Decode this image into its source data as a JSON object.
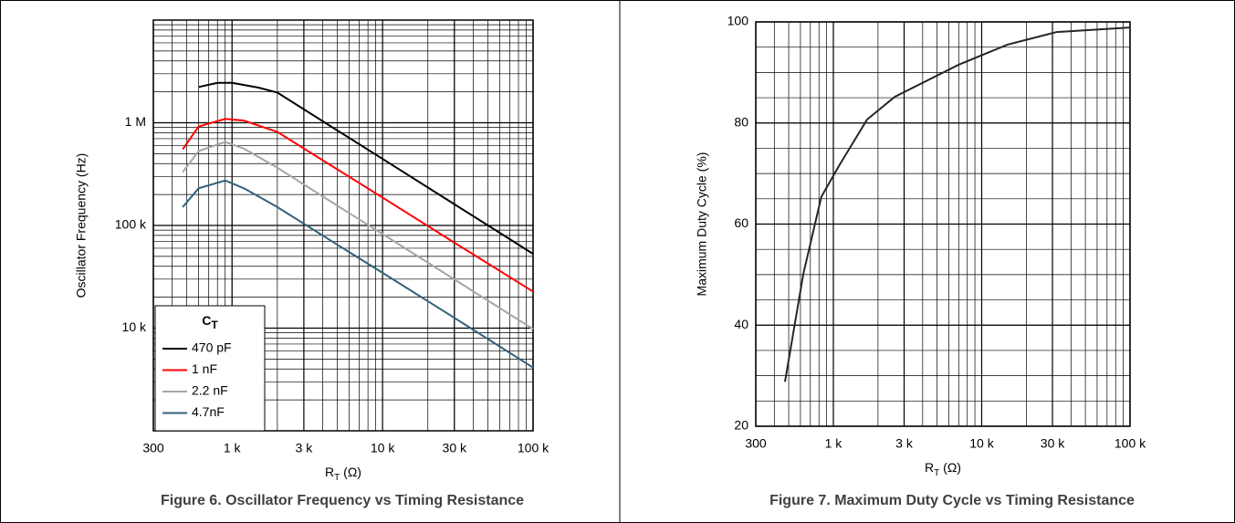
{
  "chart_data": [
    {
      "type": "line",
      "caption": "Figure 6. Oscillator Frequency vs Timing Resistance",
      "y_label": "Oscillator Frequency (Hz)",
      "x_label": {
        "main": "R",
        "sub": "T",
        "unit": " (Ω)"
      },
      "xscale": "log",
      "yscale": "log",
      "grid": true,
      "legend": "lower left",
      "legend_title": {
        "main": "C",
        "sub": "T"
      },
      "xlim": [
        300,
        100000
      ],
      "ylim": [
        1000,
        10000000
      ],
      "xticks": [
        300,
        {
          "value": 1000,
          "label": "1 k"
        },
        {
          "value": 3000,
          "label": "3 k"
        },
        {
          "value": 10000,
          "label": "10 k"
        },
        {
          "value": 30000,
          "label": "30 k"
        },
        {
          "value": 100000,
          "label": "100 k"
        }
      ],
      "yticks": [
        {
          "value": 10000,
          "label": "10 k"
        },
        {
          "value": 100000,
          "label": "100 k"
        },
        {
          "value": 1000000,
          "label": "1 M"
        }
      ],
      "series": [
        {
          "name": "470 pF",
          "color": "#000000",
          "x": [
            600,
            800,
            1000,
            1500,
            2000,
            5000,
            10000,
            30000,
            100000
          ],
          "values": [
            2230000,
            2450000,
            2450000,
            2200000,
            1970000,
            843000,
            445000,
            161000,
            52900
          ]
        },
        {
          "name": "1 nF",
          "color": "#ff0000",
          "x": [
            470,
            600,
            900,
            1200,
            2000,
            5000,
            10000,
            30000,
            100000
          ],
          "values": [
            551000,
            920000,
            1090000,
            1050000,
            814000,
            352000,
            187000,
            68000,
            22700
          ]
        },
        {
          "name": "2.2 nF",
          "color": "#a6a6a6",
          "x": [
            470,
            600,
            900,
            1200,
            2000,
            5000,
            10000,
            30000,
            100000
          ],
          "values": [
            330000,
            530000,
            650000,
            560000,
            365000,
            156000,
            82500,
            29800,
            9800
          ]
        },
        {
          "name": "4.7nF",
          "color": "#31617a",
          "x": [
            470,
            600,
            900,
            1200,
            2000,
            5000,
            10000,
            30000,
            100000
          ],
          "values": [
            151000,
            230000,
            274000,
            230000,
            151000,
            65000,
            34600,
            12600,
            4130
          ]
        }
      ]
    },
    {
      "type": "line",
      "caption": "Figure 7. Maximum Duty Cycle vs Timing Resistance",
      "y_label": "Maximum Duty Cycle (%)",
      "x_label": {
        "main": "R",
        "sub": "T",
        "unit": " (Ω)"
      },
      "xscale": "log",
      "yscale": "linear",
      "grid": true,
      "color": "#262626",
      "xlim": [
        300,
        100000
      ],
      "ylim": [
        20,
        100
      ],
      "xticks": [
        300,
        {
          "value": 1000,
          "label": "1 k"
        },
        {
          "value": 3000,
          "label": "3 k"
        },
        {
          "value": 10000,
          "label": "10 k"
        },
        {
          "value": 30000,
          "label": "30 k"
        },
        {
          "value": 100000,
          "label": "100 k"
        }
      ],
      "yticks": [
        20,
        40,
        60,
        80,
        100
      ],
      "x": [
        472,
        627,
        830,
        1100,
        1690,
        2600,
        6960,
        14900,
        32000,
        100000
      ],
      "values": [
        28.8,
        50.1,
        65.4,
        71.7,
        80.7,
        85.2,
        91.5,
        95.5,
        98,
        98.9
      ]
    }
  ]
}
